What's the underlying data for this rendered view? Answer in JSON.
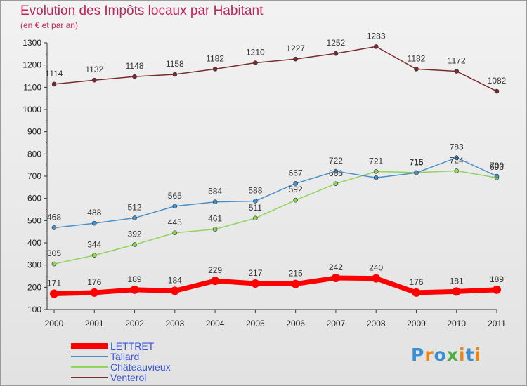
{
  "title": "Evolution des Impôts locaux par Habitant",
  "subtitle": "(en € et par an)",
  "logo": {
    "text": "Proxiti",
    "colors": [
      "#3a8fd4",
      "#e8861a",
      "#3a8fd4",
      "#4cae3c",
      "#e8861a",
      "#3a8fd4",
      "#e8861a"
    ]
  },
  "chart_data": {
    "type": "line",
    "x": [
      "2000",
      "2001",
      "2002",
      "2003",
      "2004",
      "2005",
      "2006",
      "2007",
      "2008",
      "2009",
      "2010",
      "2011"
    ],
    "ylim": [
      100,
      1300
    ],
    "yticks": [
      100,
      200,
      300,
      400,
      500,
      600,
      700,
      800,
      900,
      1000,
      1100,
      1200,
      1300
    ],
    "grid": false,
    "legend_position": "bottom-left",
    "series": [
      {
        "name": "LETTRET",
        "color": "#ff0000",
        "values": [
          171,
          176,
          189,
          184,
          229,
          217,
          215,
          242,
          240,
          176,
          181,
          189
        ]
      },
      {
        "name": "Tallard",
        "color": "#4a90c8",
        "values": [
          468,
          488,
          512,
          565,
          584,
          588,
          667,
          722,
          693,
          715,
          783,
          700
        ]
      },
      {
        "name": "Châteauvieux",
        "color": "#8ed45a",
        "values": [
          305,
          344,
          392,
          445,
          461,
          511,
          592,
          666,
          721,
          716,
          724,
          693
        ]
      },
      {
        "name": "Venterol",
        "color": "#7a2c2c",
        "values": [
          1114,
          1132,
          1148,
          1158,
          1182,
          1210,
          1227,
          1252,
          1283,
          1182,
          1172,
          1082
        ]
      }
    ],
    "data_labels": {
      "LETTRET": [
        "171",
        "176",
        "189",
        "184",
        "229",
        "217",
        "215",
        "242",
        "240",
        "176",
        "181",
        "189"
      ],
      "Tallard": [
        "468",
        "488",
        "512",
        "565",
        "584",
        "588",
        "667",
        "722",
        "",
        "715",
        "783",
        "700"
      ],
      "Châteauvieux": [
        "305",
        "344",
        "392",
        "445",
        "461",
        "511",
        "592",
        "666",
        "721",
        "716",
        "724",
        "693"
      ],
      "Venterol": [
        "1114",
        "1132",
        "1148",
        "1158",
        "1182",
        "1210",
        "1227",
        "1252",
        "1283",
        "1182",
        "1172",
        "1082"
      ]
    }
  }
}
